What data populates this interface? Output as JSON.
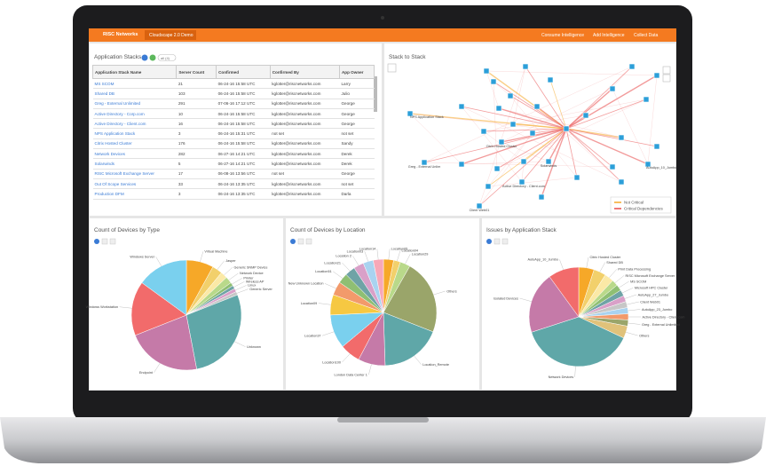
{
  "header": {
    "brand": "RISC Networks",
    "project": "Cloudscape 2.0 Demo",
    "menu": [
      "Consume Intelligence",
      "Add Intelligence",
      "Collect Data"
    ]
  },
  "app_stacks": {
    "title": "Application Stacks",
    "filter": "all (4)",
    "columns": [
      "Application Stack Name",
      "Server Count",
      "Confirmed",
      "Confirmed By",
      "App Owner"
    ],
    "rows": [
      [
        "MS SCOM",
        21,
        "06-24-16 15:58 UTC",
        "kglotter@riscnetworks.com",
        "Larry"
      ],
      [
        "Shared DB",
        103,
        "06-24-16 15:58 UTC",
        "kglotter@riscnetworks.com",
        "Julio"
      ],
      [
        "Greg - External Unlimited",
        291,
        "07-06-16 17:12 UTC",
        "kglotter@riscnetworks.com",
        "George"
      ],
      [
        "Active Directory - Corp.com",
        10,
        "06-24-16 15:58 UTC",
        "kglotter@riscnetworks.com",
        "George"
      ],
      [
        "Active Directory - Client.com",
        16,
        "06-24-16 15:58 UTC",
        "kglotter@riscnetworks.com",
        "George"
      ],
      [
        "NPS Application Stack",
        3,
        "06-24-16 15:31 UTC",
        "not set",
        "not set"
      ],
      [
        "Citrix Hosted Cluster",
        176,
        "06-24-16 15:58 UTC",
        "kglotter@riscnetworks.com",
        "Sandy"
      ],
      [
        "Network Devices",
        282,
        "06-27-16 14:21 UTC",
        "kglotter@riscnetworks.com",
        "Derek"
      ],
      [
        "Solarwinds",
        5,
        "06-27-16 14:21 UTC",
        "kglotter@riscnetworks.com",
        "Derek"
      ],
      [
        "RISC Microsoft Exchange Server",
        17,
        "06-08-16 13:56 UTC",
        "not set",
        "George"
      ],
      [
        "Out Of Scope Services",
        33,
        "06-24-16 13:35 UTC",
        "kglotter@riscnetworks.com",
        "not set"
      ],
      [
        "Production DFM",
        3,
        "06-24-16 13:35 UTC",
        "kglotter@riscnetworks.com",
        "Darla"
      ]
    ]
  },
  "stack_to_stack": {
    "title": "Stack to Stack",
    "nodes": [
      "NPS Application Stack",
      "Greg - External Unlim",
      "Solarwinds",
      "Citrix Hosted Cluster",
      "AutoApp_10_Jumbo",
      "Client Web01",
      "Active Directory - Client.com"
    ],
    "legend": [
      "Not Critical",
      "Critical Dependencies"
    ]
  },
  "chart_data": [
    {
      "type": "pie",
      "title": "Count of Devices by Type",
      "categories": [
        "Virtual Machine",
        "Jasper",
        "Generic SNMP Device",
        "Network Device",
        "Printer",
        "Wireless AP",
        "Linux",
        "Generic Server",
        "Unknown",
        "Endpoint",
        "Windows Workstation",
        "Windows Server"
      ],
      "values": [
        8,
        3,
        2,
        2,
        1,
        1,
        1,
        1,
        28,
        22,
        16,
        15
      ],
      "colors": [
        "#f6a828",
        "#f2d06b",
        "#fbe9a6",
        "#b9d98a",
        "#8fbf73",
        "#6fa3a6",
        "#d9a0c8",
        "#c7c7c7",
        "#5fa7a8",
        "#c57aa8",
        "#f26b6b",
        "#7ad0ee"
      ]
    },
    {
      "type": "pie",
      "title": "Count of Devices by Location",
      "categories": [
        "Location05",
        "Location04",
        "Location29",
        "Others",
        "Location_Remote",
        "London Data Center 1",
        "Location100",
        "Location37",
        "Location09",
        "New Unknown Location",
        "Location51",
        "Location21",
        "Location 2",
        "Location03",
        "Location14"
      ],
      "values": [
        3,
        2,
        3,
        22,
        18,
        8,
        6,
        10,
        6,
        4,
        3,
        3,
        3,
        3,
        3
      ],
      "colors": [
        "#f6a828",
        "#f2d06b",
        "#b9d98a",
        "#9aa56a",
        "#5fa7a8",
        "#c57aa8",
        "#f26b6b",
        "#7ad0ee",
        "#f6c842",
        "#f29a6b",
        "#8fbf73",
        "#6fa3a6",
        "#d9a0c8",
        "#a9d3f0",
        "#f7a8b8"
      ]
    },
    {
      "type": "pie",
      "title": "Issues by Application Stack",
      "categories": [
        "Citrix Hosted Cluster",
        "Shared DB",
        "Print Data Processing",
        "RISC Microsoft Exchange Server",
        "MS SCOM",
        "Microsoft HPC Cluster",
        "AutoApp_27_Jumbo",
        "Client Web01",
        "AutoApp_23_Jumbo",
        "Active Directory - Client.com",
        "Greg - External Unlimited",
        "Others",
        "Network Devices",
        "Isolated Devices",
        "AutoApp_10_Jumbo"
      ],
      "values": [
        5,
        4,
        3,
        2,
        2,
        2,
        2,
        2,
        2,
        2,
        2,
        4,
        38,
        20,
        10
      ],
      "colors": [
        "#f6a828",
        "#f2d06b",
        "#fbe9a6",
        "#b9d98a",
        "#8fbf73",
        "#6fa3a6",
        "#d9a0c8",
        "#c7c7c7",
        "#a9d3f0",
        "#f29a6b",
        "#9aa56a",
        "#e0c27a",
        "#5fa7a8",
        "#c57aa8",
        "#f26b6b"
      ]
    }
  ]
}
